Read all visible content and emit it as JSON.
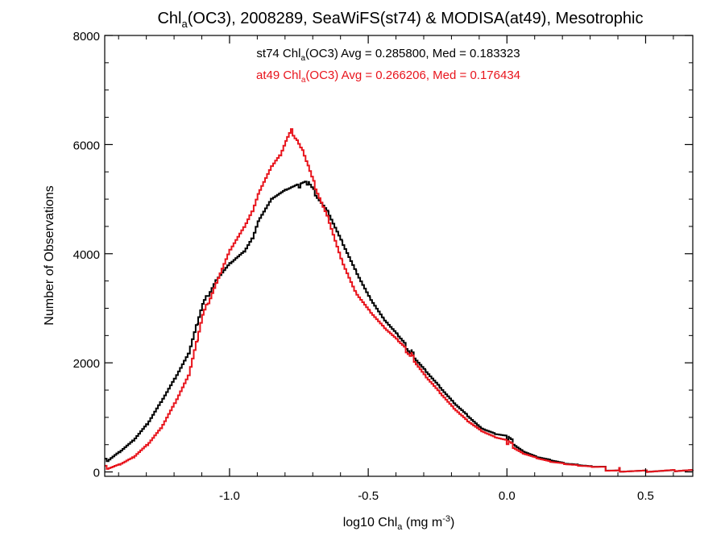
{
  "chart_data": {
    "type": "line",
    "title": {
      "prefix": "Chl",
      "sub": "a",
      "suffix": "(OC3), 2008289, SeaWiFS(st74) & MODISA(at49), Mesotrophic"
    },
    "xlabel": {
      "prefix": "log10 Chl",
      "sub": "a",
      "mid": " (mg m",
      "sup": "-3",
      "end": ")"
    },
    "ylabel": "Number of Observations",
    "xlim": [
      -1.45,
      0.67
    ],
    "ylim": [
      -80,
      8000
    ],
    "xticks": [
      -1.0,
      -0.5,
      0.0,
      0.5
    ],
    "xtick_labels": [
      "-1.0",
      "-0.5",
      "0.0",
      "0.5"
    ],
    "yticks": [
      0,
      2000,
      4000,
      6000,
      8000
    ],
    "ytick_labels": [
      "0",
      "2000",
      "4000",
      "6000",
      "8000"
    ],
    "grid": false,
    "legend_placement": "top-center",
    "series": [
      {
        "name": "st74",
        "legend": {
          "prefix": "st74 Chl",
          "sub": "a",
          "suffix": "(OC3) Avg = 0.285800, Med = 0.183323"
        },
        "color": "#000000",
        "points": [
          [
            -1.45,
            210
          ],
          [
            -1.4,
            390
          ],
          [
            -1.35,
            590
          ],
          [
            -1.3,
            880
          ],
          [
            -1.25,
            1280
          ],
          [
            -1.2,
            1700
          ],
          [
            -1.15,
            2150
          ],
          [
            -1.12,
            2700
          ],
          [
            -1.1,
            3050
          ],
          [
            -1.05,
            3550
          ],
          [
            -1.0,
            3850
          ],
          [
            -0.95,
            4050
          ],
          [
            -0.92,
            4300
          ],
          [
            -0.9,
            4600
          ],
          [
            -0.85,
            5000
          ],
          [
            -0.8,
            5150
          ],
          [
            -0.75,
            5250
          ],
          [
            -0.72,
            5300
          ],
          [
            -0.7,
            5150
          ],
          [
            -0.65,
            4800
          ],
          [
            -0.6,
            4250
          ],
          [
            -0.55,
            3700
          ],
          [
            -0.5,
            3200
          ],
          [
            -0.45,
            2800
          ],
          [
            -0.4,
            2500
          ],
          [
            -0.35,
            2200
          ],
          [
            -0.3,
            1900
          ],
          [
            -0.25,
            1600
          ],
          [
            -0.2,
            1300
          ],
          [
            -0.15,
            1050
          ],
          [
            -0.1,
            800
          ],
          [
            -0.05,
            680
          ],
          [
            0.0,
            620
          ],
          [
            0.05,
            420
          ],
          [
            0.1,
            300
          ],
          [
            0.15,
            230
          ],
          [
            0.2,
            160
          ],
          [
            0.25,
            120
          ],
          [
            0.3,
            80
          ],
          [
            0.4,
            40
          ],
          [
            0.5,
            20
          ],
          [
            0.6,
            10
          ],
          [
            0.67,
            5
          ]
        ]
      },
      {
        "name": "at49",
        "legend": {
          "prefix": "at49 Chl",
          "sub": "a",
          "suffix": "(OC3) Avg = 0.266206, Med = 0.176434"
        },
        "color": "#e8141c",
        "points": [
          [
            -1.45,
            80
          ],
          [
            -1.4,
            160
          ],
          [
            -1.35,
            280
          ],
          [
            -1.3,
            500
          ],
          [
            -1.25,
            800
          ],
          [
            -1.2,
            1250
          ],
          [
            -1.15,
            1750
          ],
          [
            -1.12,
            2400
          ],
          [
            -1.1,
            2850
          ],
          [
            -1.05,
            3500
          ],
          [
            -1.0,
            4100
          ],
          [
            -0.95,
            4500
          ],
          [
            -0.92,
            4800
          ],
          [
            -0.9,
            5100
          ],
          [
            -0.85,
            5600
          ],
          [
            -0.82,
            5800
          ],
          [
            -0.8,
            6050
          ],
          [
            -0.78,
            6250
          ],
          [
            -0.76,
            6100
          ],
          [
            -0.74,
            5900
          ],
          [
            -0.72,
            5600
          ],
          [
            -0.7,
            5300
          ],
          [
            -0.65,
            4700
          ],
          [
            -0.6,
            3900
          ],
          [
            -0.55,
            3300
          ],
          [
            -0.5,
            2950
          ],
          [
            -0.45,
            2650
          ],
          [
            -0.4,
            2400
          ],
          [
            -0.35,
            2150
          ],
          [
            -0.3,
            1800
          ],
          [
            -0.25,
            1500
          ],
          [
            -0.2,
            1200
          ],
          [
            -0.15,
            950
          ],
          [
            -0.1,
            750
          ],
          [
            -0.05,
            620
          ],
          [
            0.0,
            540
          ],
          [
            0.05,
            380
          ],
          [
            0.1,
            280
          ],
          [
            0.15,
            200
          ],
          [
            0.2,
            150
          ],
          [
            0.25,
            110
          ],
          [
            0.3,
            75
          ],
          [
            0.4,
            40
          ],
          [
            0.5,
            20
          ],
          [
            0.6,
            12
          ],
          [
            0.67,
            6
          ]
        ]
      }
    ]
  }
}
